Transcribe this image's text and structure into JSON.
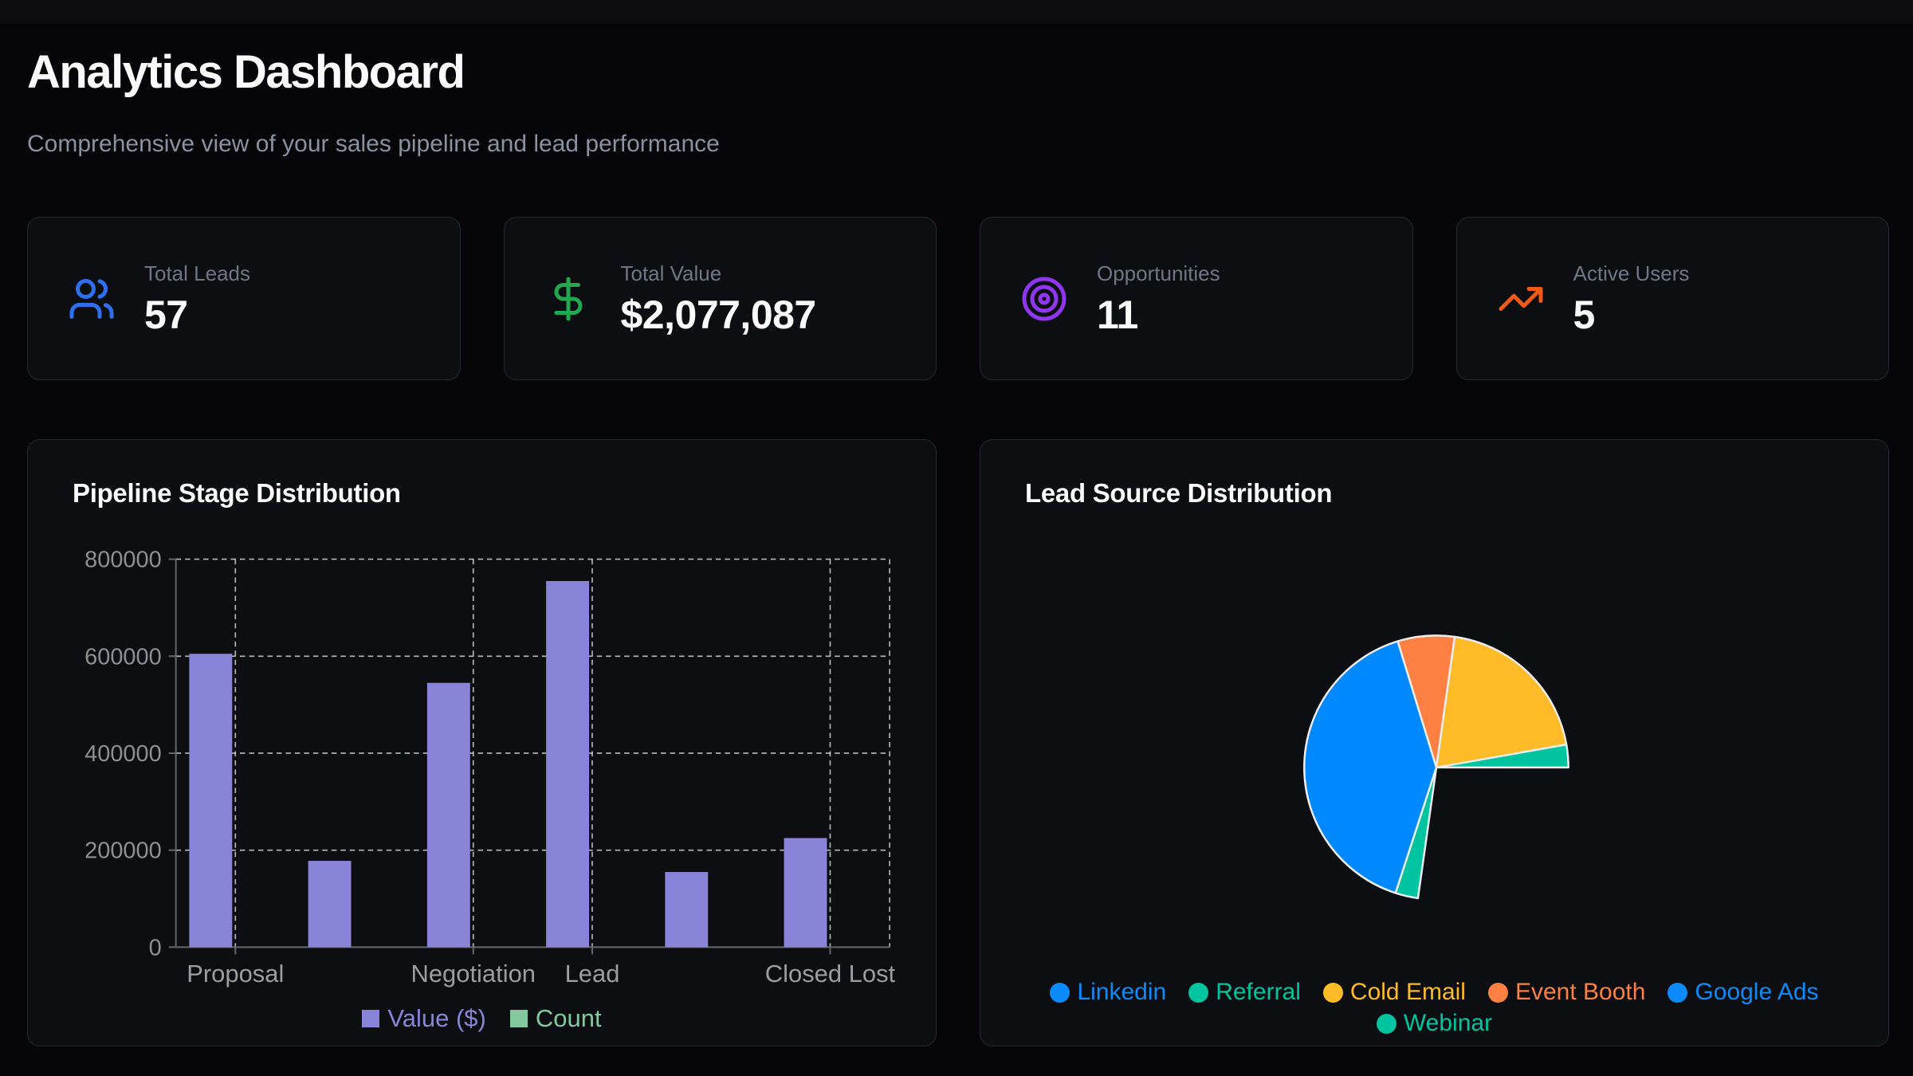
{
  "page": {
    "title": "Analytics Dashboard",
    "subtitle": "Comprehensive view of your sales pipeline and lead performance"
  },
  "stats": [
    {
      "label": "Total Leads",
      "value": "57",
      "icon": "users-icon",
      "icon_color": "#2f6fed"
    },
    {
      "label": "Total Value",
      "value": "$2,077,087",
      "icon": "dollar-sign-icon",
      "icon_color": "#21a84f"
    },
    {
      "label": "Opportunities",
      "value": "11",
      "icon": "target-icon",
      "icon_color": "#9035f0"
    },
    {
      "label": "Active Users",
      "value": "5",
      "icon": "trending-up-icon",
      "icon_color": "#ef5b17"
    }
  ],
  "chart_data": [
    {
      "type": "bar",
      "title": "Pipeline Stage Distribution",
      "categories": [
        "Proposal",
        "",
        "Negotiation",
        "Lead",
        "",
        "Closed Lost"
      ],
      "x_tick_labels_visible": [
        "Proposal",
        "Negotiation",
        "Lead",
        "Closed Lost"
      ],
      "series": [
        {
          "name": "Value ($)",
          "color": "#8884d8",
          "values": [
            605000,
            178000,
            545000,
            755000,
            155000,
            225000
          ]
        },
        {
          "name": "Count",
          "color": "#82ca9d",
          "values": [
            null,
            null,
            null,
            null,
            null,
            null
          ],
          "note": "Count bars are rendered at the dollar axis scale and are too small to be visible"
        }
      ],
      "ylim": [
        0,
        800000
      ],
      "yticks": [
        0,
        200000,
        400000,
        600000,
        800000
      ],
      "grid": "dashed",
      "legend_position": "bottom",
      "axis_color": "#676767",
      "grid_color": "#d9d9d9",
      "tick_text_color": "#8f8f8f",
      "xlabel_text_color": "#9d9d9d"
    },
    {
      "type": "pie",
      "title": "Lead Source Distribution",
      "start_angle_deg_cw_from_north": -17,
      "slices": [
        {
          "label": "Event Booth",
          "fill": "#FF8042",
          "angle_deg": 25,
          "percent": 6.9,
          "est_value": 4
        },
        {
          "label": "Cold Email",
          "fill": "#FFBB28",
          "angle_deg": 72,
          "percent": 20.0,
          "est_value": 11
        },
        {
          "label": "Referral",
          "fill": "#00C49F",
          "angle_deg": 10,
          "percent": 2.8,
          "est_value": 2
        },
        {
          "label": "Linkedin",
          "fill": null,
          "angle_deg": 98,
          "percent": 27.2,
          "est_value": 15,
          "note": "slice renders same color as background, appears as an empty notch"
        },
        {
          "label": "Webinar",
          "fill": "#00C49F",
          "angle_deg": 10,
          "percent": 2.8,
          "est_value": 2
        },
        {
          "label": "Google Ads",
          "fill": "#0088FE",
          "angle_deg": 145,
          "percent": 40.3,
          "est_value": 23
        }
      ],
      "stroke_color": "#ededed",
      "legend": [
        {
          "label": "Linkedin",
          "color": "#0d8bfd"
        },
        {
          "label": "Referral",
          "color": "#00C49F"
        },
        {
          "label": "Cold Email",
          "color": "#FFBB28"
        },
        {
          "label": "Event Booth",
          "color": "#FF8042"
        },
        {
          "label": "Google Ads",
          "color": "#0d8bfd"
        },
        {
          "label": "Webinar",
          "color": "#00C49F"
        }
      ],
      "legend_rows": [
        5,
        1
      ]
    }
  ]
}
